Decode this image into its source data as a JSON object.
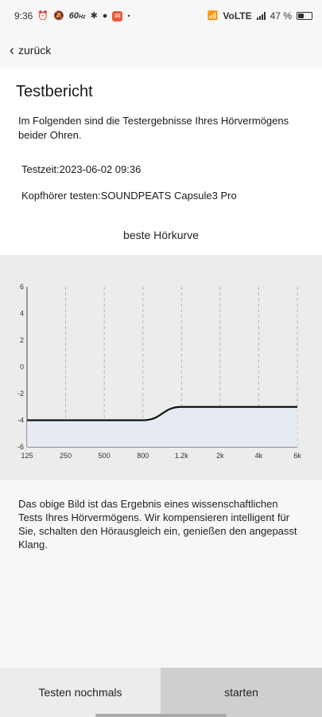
{
  "status_bar": {
    "time": "9:36",
    "refresh_rate": "60",
    "refresh_unit": "Hz",
    "network": "VoLTE",
    "battery_percent": "47 %",
    "battery_level": 0.47
  },
  "nav": {
    "back_label": "zurück"
  },
  "report": {
    "title": "Testbericht",
    "intro": "Im Folgenden sind die Testergebnisse Ihres Hörvermögens beider Ohren.",
    "test_time": "Testzeit:2023-06-02 09:36",
    "headphones": "Kopfhörer testen:SOUNDPEATS Capsule3 Pro",
    "chart_title": "beste Hörkurve"
  },
  "chart_data": {
    "type": "line",
    "title": "beste Hörkurve",
    "categories": [
      "125",
      "250",
      "500",
      "800",
      "1.2k",
      "2k",
      "4k",
      "6k"
    ],
    "series": [
      {
        "values": [
          -4,
          -4,
          -4,
          -4,
          -3,
          -3,
          -3,
          -3
        ]
      }
    ],
    "yticks": [
      "6",
      "4",
      "2",
      "0",
      "-2",
      "-4",
      "-6"
    ],
    "ylim": [
      -6,
      6
    ],
    "grid": "vertical-dashed",
    "fill_below": true
  },
  "description": "Das obige Bild ist das Ergebnis eines wissenschaftlichen Tests Ihres Hörvermögens. Wir kompensieren intelligent für Sie, schalten den Hörausgleich ein, genießen den angepasst Klang.",
  "buttons": {
    "retest": "Testen nochmals",
    "start": "starten"
  }
}
